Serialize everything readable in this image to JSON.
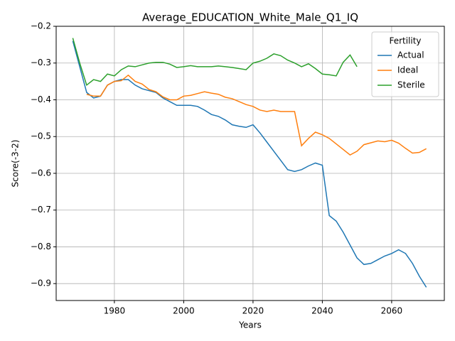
{
  "chart_data": {
    "type": "line",
    "title": "Average_EDUCATION_White_Male_Q1_IQ",
    "x_label": "Years",
    "y_label": "Score(-3-2)",
    "x": [
      1968,
      1970,
      1972,
      1974,
      1976,
      1978,
      1980,
      1982,
      1984,
      1986,
      1988,
      1990,
      1992,
      1994,
      1996,
      1998,
      2000,
      2002,
      2004,
      2006,
      2008,
      2010,
      2012,
      2014,
      2016,
      2018,
      2020,
      2022,
      2024,
      2026,
      2028,
      2030,
      2032,
      2034,
      2036,
      2038,
      2040,
      2042,
      2044,
      2046,
      2048,
      2050,
      2052,
      2054,
      2056,
      2058,
      2060,
      2062,
      2064,
      2066,
      2068,
      2070
    ],
    "series": [
      {
        "name": "Actual",
        "color": "#1f77b4",
        "values": [
          -0.24,
          -0.31,
          -0.38,
          -0.395,
          -0.39,
          -0.36,
          -0.35,
          -0.345,
          -0.345,
          -0.36,
          -0.37,
          -0.375,
          -0.38,
          -0.395,
          -0.405,
          -0.415,
          -0.415,
          -0.415,
          -0.418,
          -0.428,
          -0.44,
          -0.445,
          -0.455,
          -0.468,
          -0.472,
          -0.475,
          -0.468,
          -0.49,
          -0.515,
          -0.54,
          -0.565,
          -0.59,
          -0.595,
          -0.59,
          -0.58,
          -0.572,
          -0.578,
          -0.715,
          -0.73,
          -0.76,
          -0.795,
          -0.83,
          -0.848,
          -0.845,
          -0.835,
          -0.825,
          -0.818,
          -0.808,
          -0.818,
          -0.845,
          -0.88,
          -0.91
        ]
      },
      {
        "name": "Ideal",
        "color": "#ff7f0e",
        "values": [
          null,
          null,
          -0.385,
          -0.39,
          -0.39,
          -0.36,
          -0.35,
          -0.348,
          -0.333,
          -0.35,
          -0.357,
          -0.372,
          -0.378,
          -0.392,
          -0.4,
          -0.4,
          -0.39,
          -0.388,
          -0.383,
          -0.378,
          -0.382,
          -0.385,
          -0.393,
          -0.397,
          -0.405,
          -0.413,
          -0.418,
          -0.428,
          -0.432,
          -0.428,
          -0.432,
          -0.432,
          -0.432,
          -0.525,
          -0.505,
          -0.488,
          -0.495,
          -0.505,
          -0.52,
          -0.535,
          -0.55,
          -0.54,
          -0.522,
          -0.517,
          -0.512,
          -0.514,
          -0.51,
          -0.518,
          -0.532,
          -0.545,
          -0.543,
          -0.533
        ]
      },
      {
        "name": "Sterile",
        "color": "#2ca02c",
        "values": [
          -0.232,
          -0.3,
          -0.36,
          -0.345,
          -0.35,
          -0.33,
          -0.335,
          -0.318,
          -0.308,
          -0.31,
          -0.305,
          -0.3,
          -0.298,
          -0.298,
          -0.303,
          -0.312,
          -0.31,
          -0.307,
          -0.31,
          -0.31,
          -0.31,
          -0.308,
          -0.31,
          -0.312,
          -0.315,
          -0.318,
          -0.3,
          -0.295,
          -0.287,
          -0.275,
          -0.28,
          -0.292,
          -0.3,
          -0.31,
          -0.302,
          -0.315,
          -0.33,
          -0.332,
          -0.335,
          -0.298,
          -0.278,
          -0.31,
          null,
          null,
          null,
          null,
          null,
          null,
          null,
          null,
          null,
          null
        ]
      }
    ],
    "xlim": [
      1963.2,
      2075.2
    ],
    "ylim": [
      -0.946,
      -0.2
    ],
    "xticks": [
      1980,
      2000,
      2020,
      2040,
      2060
    ],
    "yticks": [
      {
        "value": -0.9,
        "label": "−0.9"
      },
      {
        "value": -0.8,
        "label": "−0.8"
      },
      {
        "value": -0.7,
        "label": "−0.7"
      },
      {
        "value": -0.6,
        "label": "−0.6"
      },
      {
        "value": -0.5,
        "label": "−0.5"
      },
      {
        "value": -0.4,
        "label": "−0.4"
      },
      {
        "value": -0.3,
        "label": "−0.3"
      },
      {
        "value": -0.2,
        "label": "−0.2"
      }
    ],
    "grid": true,
    "legend_title": "Fertility",
    "legend_loc": "upper right"
  }
}
